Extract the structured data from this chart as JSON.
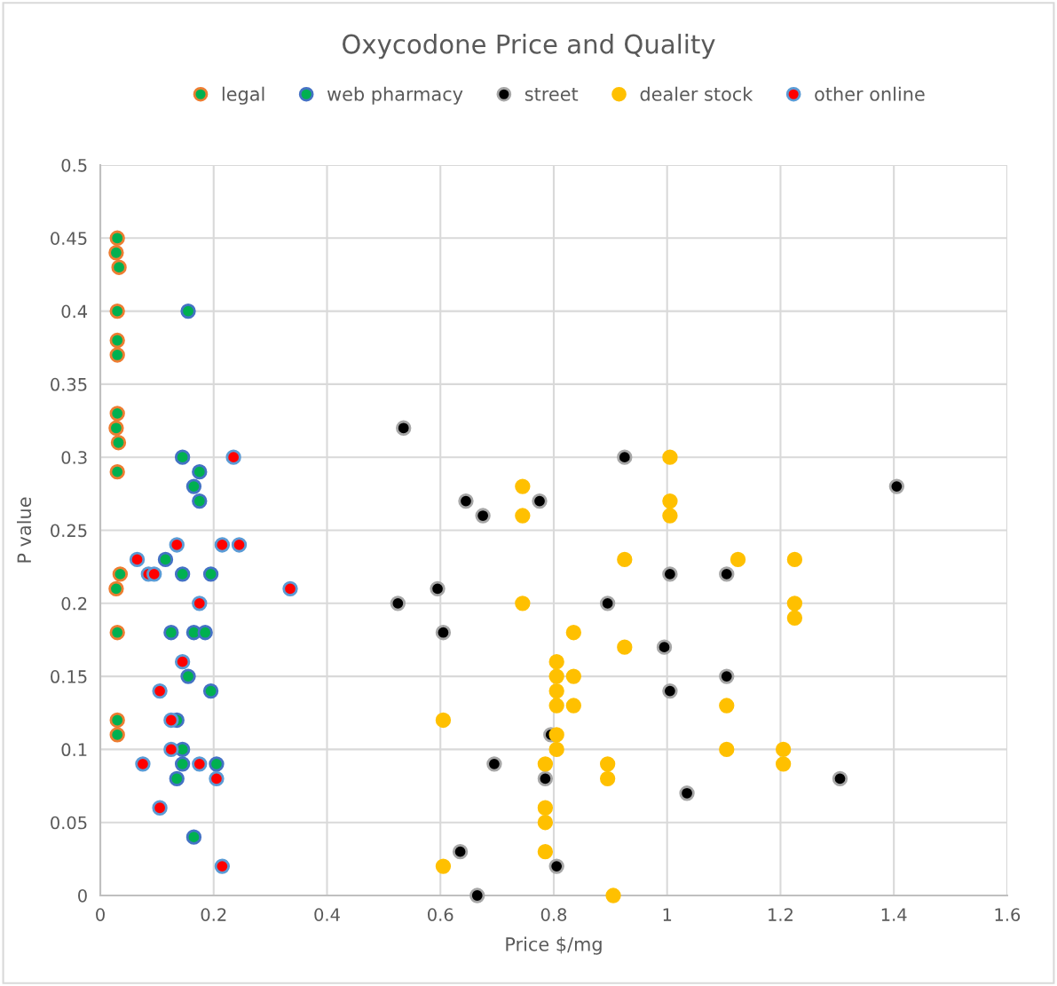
{
  "chart_data": {
    "type": "scatter",
    "title": "Oxycodone Price and Quality",
    "xlabel": "Price $/mg",
    "ylabel": "P value",
    "xlim": [
      0,
      1.6
    ],
    "xticks": [
      0,
      0.2,
      0.4,
      0.6,
      0.8,
      1,
      1.2,
      1.4,
      1.6
    ],
    "ylim": [
      0,
      0.5
    ],
    "yticks": [
      0,
      0.05,
      0.1,
      0.15,
      0.2,
      0.25,
      0.3,
      0.35,
      0.4,
      0.45,
      0.5
    ],
    "grid": true,
    "legend": "top",
    "marker": "circle",
    "series": [
      {
        "name": "legal",
        "color": "#00b050",
        "x": [
          0.03,
          0.028,
          0.033,
          0.03,
          0.03,
          0.03,
          0.03,
          0.028,
          0.032,
          0.03,
          0.035,
          0.028,
          0.03,
          0.03,
          0.03
        ],
        "values": [
          0.45,
          0.44,
          0.43,
          0.4,
          0.38,
          0.37,
          0.33,
          0.32,
          0.31,
          0.29,
          0.22,
          0.21,
          0.18,
          0.12,
          0.11
        ]
      },
      {
        "name": "web pharmacy",
        "color": "#00b050",
        "x": [
          0.155,
          0.145,
          0.175,
          0.165,
          0.175,
          0.115,
          0.145,
          0.195,
          0.125,
          0.165,
          0.185,
          0.155,
          0.195,
          0.135,
          0.145,
          0.145,
          0.205,
          0.135,
          0.165
        ],
        "values": [
          0.4,
          0.3,
          0.29,
          0.28,
          0.27,
          0.23,
          0.22,
          0.22,
          0.18,
          0.18,
          0.18,
          0.15,
          0.14,
          0.12,
          0.1,
          0.09,
          0.09,
          0.08,
          0.04
        ]
      },
      {
        "name": "street",
        "color": "#000000",
        "x": [
          0.535,
          0.925,
          0.645,
          0.775,
          0.675,
          1.405,
          1.005,
          1.105,
          0.595,
          0.525,
          0.895,
          0.605,
          0.995,
          1.105,
          1.005,
          0.795,
          0.695,
          0.785,
          1.305,
          1.035,
          0.635,
          0.805,
          0.665
        ],
        "values": [
          0.32,
          0.3,
          0.27,
          0.27,
          0.26,
          0.28,
          0.22,
          0.22,
          0.21,
          0.2,
          0.2,
          0.18,
          0.17,
          0.15,
          0.14,
          0.11,
          0.09,
          0.08,
          0.08,
          0.07,
          0.03,
          0.02,
          0.0
        ]
      },
      {
        "name": "dealer stock",
        "color": "#ffc000",
        "x": [
          1.005,
          0.745,
          0.745,
          1.005,
          1.005,
          0.925,
          1.125,
          1.225,
          0.745,
          1.225,
          1.225,
          0.835,
          0.925,
          0.805,
          0.805,
          0.835,
          0.805,
          0.805,
          0.835,
          1.105,
          0.605,
          0.805,
          0.805,
          1.105,
          1.205,
          0.785,
          0.895,
          1.205,
          0.895,
          0.785,
          0.785,
          0.785,
          0.605,
          0.905
        ],
        "values": [
          0.3,
          0.28,
          0.26,
          0.27,
          0.26,
          0.23,
          0.23,
          0.23,
          0.2,
          0.2,
          0.19,
          0.18,
          0.17,
          0.16,
          0.15,
          0.15,
          0.14,
          0.13,
          0.13,
          0.13,
          0.12,
          0.11,
          0.1,
          0.1,
          0.1,
          0.09,
          0.09,
          0.09,
          0.08,
          0.06,
          0.05,
          0.03,
          0.02,
          0.0
        ]
      },
      {
        "name": "other online",
        "color": "#ff0000",
        "x": [
          0.235,
          0.135,
          0.215,
          0.245,
          0.065,
          0.085,
          0.095,
          0.335,
          0.175,
          0.145,
          0.105,
          0.125,
          0.125,
          0.075,
          0.175,
          0.205,
          0.105,
          0.215
        ],
        "values": [
          0.3,
          0.24,
          0.24,
          0.24,
          0.23,
          0.22,
          0.22,
          0.21,
          0.2,
          0.16,
          0.14,
          0.12,
          0.1,
          0.09,
          0.09,
          0.08,
          0.06,
          0.02
        ]
      }
    ]
  }
}
